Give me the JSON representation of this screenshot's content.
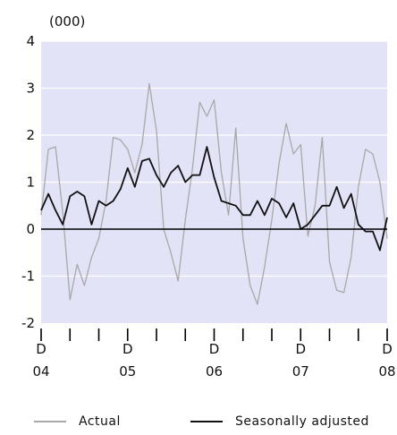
{
  "chart_data": {
    "type": "line",
    "unit_label": "(000)",
    "ylim": [
      -2,
      4
    ],
    "y_ticks": [
      "4",
      "3",
      "2",
      "1",
      "0",
      "-1",
      "-2"
    ],
    "y_tick_values": [
      4,
      3,
      2,
      1,
      0,
      -1,
      -2
    ],
    "x_year_labels": [
      "04",
      "05",
      "06",
      "07",
      "08"
    ],
    "x_month_label": "D",
    "x_period_count": 48,
    "plot_background": "#e3e3f7",
    "grid": true,
    "legend_position": "bottom",
    "series": [
      {
        "name": "Actual",
        "color": "#a8a8a8",
        "values": [
          0.3,
          1.7,
          1.75,
          0.35,
          -1.5,
          -0.75,
          -1.2,
          -0.6,
          -0.2,
          0.6,
          1.95,
          1.9,
          1.7,
          1.2,
          1.8,
          3.1,
          2.1,
          0.0,
          -0.5,
          -1.1,
          0.2,
          1.3,
          2.7,
          2.4,
          2.75,
          1.2,
          0.3,
          2.15,
          -0.2,
          -1.2,
          -1.6,
          -0.8,
          0.2,
          1.4,
          2.25,
          1.6,
          1.8,
          -0.15,
          0.5,
          1.95,
          -0.7,
          -1.3,
          -1.35,
          -0.6,
          0.9,
          1.7,
          1.6,
          1.0,
          -0.2
        ]
      },
      {
        "name": "Seasonally adjusted",
        "color": "#111111",
        "values": [
          0.4,
          0.75,
          0.4,
          0.1,
          0.7,
          0.8,
          0.7,
          0.1,
          0.6,
          0.5,
          0.6,
          0.85,
          1.3,
          0.9,
          1.45,
          1.5,
          1.15,
          0.9,
          1.2,
          1.35,
          1.0,
          1.15,
          1.15,
          1.75,
          1.1,
          0.6,
          0.55,
          0.5,
          0.3,
          0.3,
          0.6,
          0.3,
          0.65,
          0.55,
          0.25,
          0.55,
          0.0,
          0.1,
          0.3,
          0.5,
          0.5,
          0.9,
          0.45,
          0.75,
          0.1,
          -0.05,
          -0.05,
          -0.45,
          0.25
        ]
      }
    ]
  }
}
